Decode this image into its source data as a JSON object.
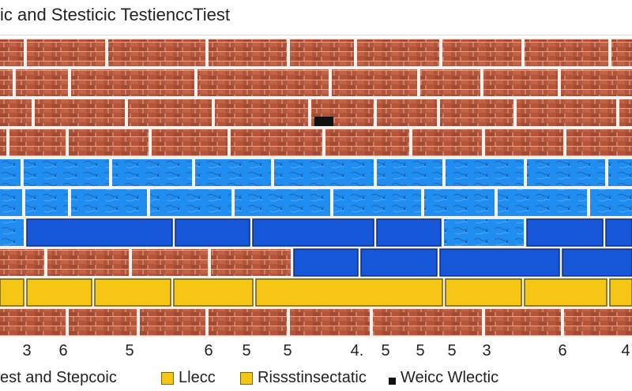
{
  "title": "ic and Stesticic TestienccTiest",
  "colors": {
    "brick": "#b4553a",
    "brick_dark": "#8e3d27",
    "light_blue": "#1f8ef0",
    "dark_blue": "#1557d8",
    "yellow": "#f6c614",
    "mortar": "#f4f1ec"
  },
  "wall": {
    "rows": [
      {
        "kind": "brick",
        "splits": [
          32,
          135,
          262,
          365,
          450,
          558,
          662,
          772
        ]
      },
      {
        "kind": "brick",
        "splits": [
          18,
          88,
          248,
          418,
          530,
          610,
          708
        ]
      },
      {
        "kind": "brick",
        "splits": [
          42,
          160,
          270,
          392,
          475,
          555,
          652,
          782
        ]
      },
      {
        "kind": "brick",
        "splits": [
          10,
          85,
          190,
          290,
          410,
          520,
          612,
          715
        ]
      },
      {
        "kind": "lightblue",
        "splits": [
          28,
          140,
          245,
          345,
          475,
          562,
          665,
          768
        ]
      },
      {
        "kind": "lightblue",
        "splits": [
          30,
          88,
          188,
          295,
          420,
          535,
          628,
          745
        ]
      },
      {
        "kind": "mixed",
        "splits": [
          32,
          220,
          318,
          475,
          560,
          665,
          765
        ],
        "fills": [
          "lightblue",
          "darkblue",
          "darkblue",
          "darkblue",
          "darkblue",
          "lightblue",
          "darkblue",
          "darkblue"
        ]
      },
      {
        "kind": "mixed",
        "splits": [
          58,
          165,
          265,
          370,
          455,
          555,
          710
        ],
        "fills": [
          "brick",
          "brick",
          "brick",
          "brick",
          "darkblue",
          "darkblue",
          "darkblue",
          "darkblue"
        ]
      },
      {
        "kind": "yellow",
        "splits": [
          32,
          118,
          218,
          322,
          562,
          662,
          770
        ]
      },
      {
        "kind": "brick",
        "splits": [
          85,
          175,
          262,
          365,
          470,
          612,
          712
        ]
      }
    ]
  },
  "axis": {
    "ticks": [
      {
        "label": "3",
        "pos": 0.0425
      },
      {
        "label": "6",
        "pos": 0.1
      },
      {
        "label": "5",
        "pos": 0.205
      },
      {
        "label": "6",
        "pos": 0.33
      },
      {
        "label": "5",
        "pos": 0.39
      },
      {
        "label": "5",
        "pos": 0.455
      },
      {
        "label": "4.",
        "pos": 0.565
      },
      {
        "label": "5",
        "pos": 0.61
      },
      {
        "label": "5",
        "pos": 0.665
      },
      {
        "label": "5",
        "pos": 0.715
      },
      {
        "label": "3",
        "pos": 0.77
      },
      {
        "label": "6",
        "pos": 0.89
      },
      {
        "label": "4",
        "pos": 0.99
      }
    ]
  },
  "legend": {
    "items": [
      {
        "label": "est and Stepcoic",
        "swatch": "none",
        "pos": 0.0
      },
      {
        "label": "Llecc",
        "swatch": "yellow",
        "pos": 0.255
      },
      {
        "label": "Rissstinsectatic",
        "swatch": "yellow",
        "pos": 0.38
      },
      {
        "label": "Weicc Wlectic",
        "swatch": "black",
        "pos": 0.615
      }
    ]
  }
}
